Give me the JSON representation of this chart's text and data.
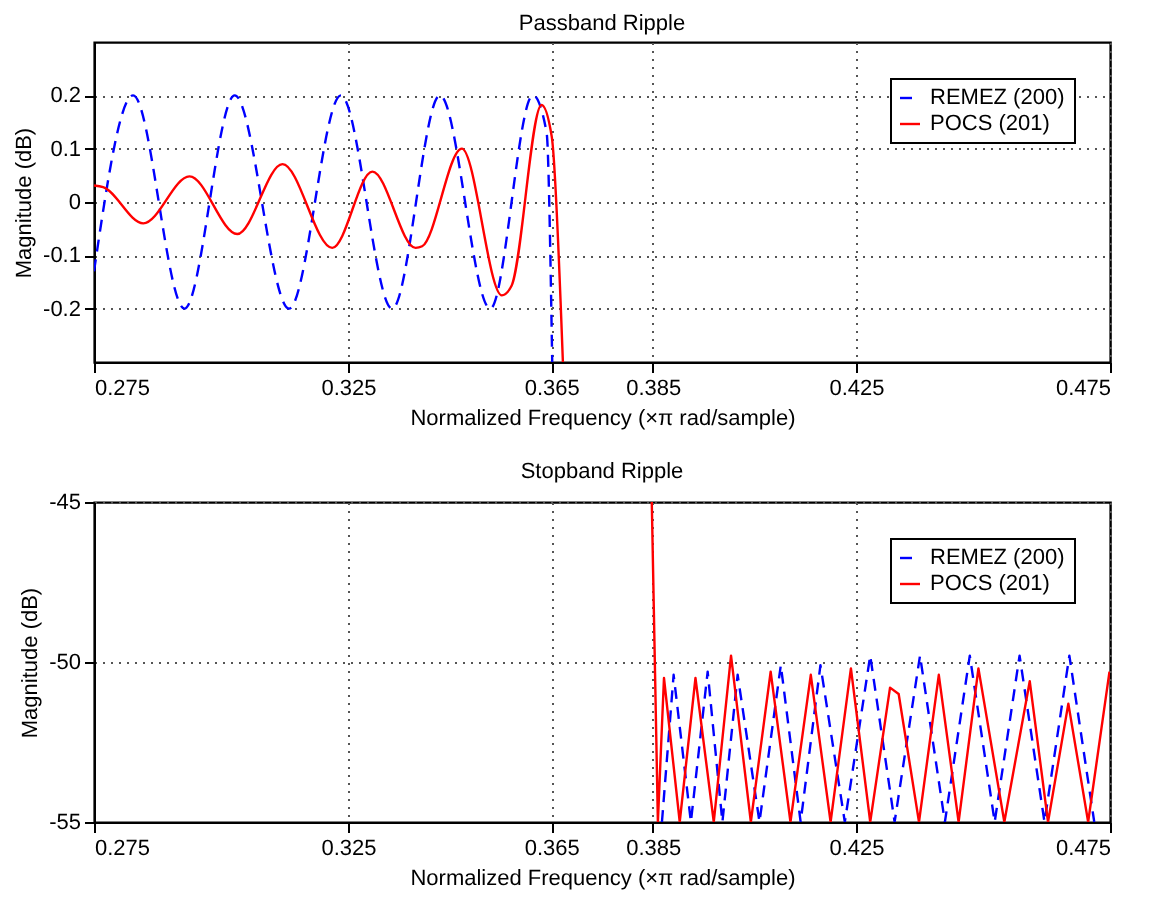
{
  "chart_data": [
    {
      "type": "line",
      "title": "Passband Ripple",
      "xlabel": "Normalized Frequency (×π rad/sample)",
      "ylabel": "Magnitude (dB)",
      "xlim": [
        0.275,
        0.475
      ],
      "xticks": [
        0.275,
        0.325,
        0.365,
        0.385,
        0.425,
        0.475
      ],
      "ylim": [
        -0.3,
        0.3
      ],
      "yticks": [
        -0.2,
        -0.1,
        0,
        0.1,
        0.2
      ],
      "grid": true,
      "legend": "top right",
      "marker": "none",
      "series": [
        {
          "name": "REMEZ (200)",
          "color": "#0000ff",
          "line_style": "dashed",
          "x": [
            0.275,
            0.2827,
            0.2928,
            0.3027,
            0.3134,
            0.3236,
            0.3337,
            0.3431,
            0.353,
            0.3614,
            0.3641,
            0.3652
          ],
          "values": [
            -0.13,
            0.2,
            -0.2,
            0.2,
            -0.2,
            0.2,
            -0.2,
            0.2,
            -0.2,
            0.2,
            0.13,
            -0.3
          ]
        },
        {
          "name": "POCS (201)",
          "color": "#ff0000",
          "line_style": "solid",
          "x": [
            0.275,
            0.2768,
            0.2847,
            0.2938,
            0.3032,
            0.3121,
            0.3219,
            0.3298,
            0.3383,
            0.3396,
            0.3474,
            0.3553,
            0.3572,
            0.3631,
            0.3651,
            0.3673
          ],
          "values": [
            0.031,
            0.028,
            -0.04,
            0.048,
            -0.06,
            0.071,
            -0.086,
            0.057,
            -0.086,
            -0.083,
            0.1,
            -0.175,
            -0.157,
            0.182,
            0.123,
            -0.3
          ]
        }
      ]
    },
    {
      "type": "line",
      "title": "Stopband Ripple",
      "xlabel": "Normalized Frequency (×π rad/sample)",
      "ylabel": "Magnitude (dB)",
      "xlim": [
        0.275,
        0.475
      ],
      "xticks": [
        0.275,
        0.325,
        0.365,
        0.385,
        0.425,
        0.475
      ],
      "ylim": [
        -55,
        -45
      ],
      "yticks": [
        -55,
        -50,
        -45
      ],
      "grid": true,
      "legend": "top right",
      "marker": "none",
      "series": [
        {
          "name": "REMEZ (200)",
          "color": "#0000ff",
          "line_style": "dashed",
          "x": [
            0.3868,
            0.3891,
            0.3925,
            0.3958,
            0.3987,
            0.4017,
            0.406,
            0.4102,
            0.4141,
            0.418,
            0.4228,
            0.4278,
            0.4326,
            0.4376,
            0.4425,
            0.4474,
            0.4523,
            0.4572,
            0.4621,
            0.467,
            0.4719
          ],
          "values": [
            -55,
            -50.4,
            -55,
            -50.3,
            -55,
            -50.4,
            -55,
            -50.1,
            -55,
            -50.1,
            -55,
            -49.8,
            -55,
            -49.8,
            -55,
            -49.8,
            -55,
            -49.8,
            -55,
            -49.8,
            -55
          ]
        },
        {
          "name": "POCS (201)",
          "color": "#ff0000",
          "line_style": "solid",
          "x": [
            0.3848,
            0.386,
            0.3872,
            0.3903,
            0.3934,
            0.397,
            0.4004,
            0.4043,
            0.4082,
            0.4121,
            0.4161,
            0.42,
            0.424,
            0.4278,
            0.4317,
            0.4334,
            0.4374,
            0.4413,
            0.4452,
            0.4491,
            0.4542,
            0.4592,
            0.4628,
            0.4668,
            0.4707,
            0.4749
          ],
          "values": [
            -45,
            -55,
            -50.5,
            -55,
            -50.5,
            -55,
            -49.8,
            -55,
            -50.3,
            -55,
            -50.4,
            -55,
            -50.2,
            -55,
            -50.8,
            -51.0,
            -55,
            -50.4,
            -55,
            -50.2,
            -55,
            -50.6,
            -55,
            -51.3,
            -55,
            -50.3
          ]
        }
      ]
    }
  ]
}
